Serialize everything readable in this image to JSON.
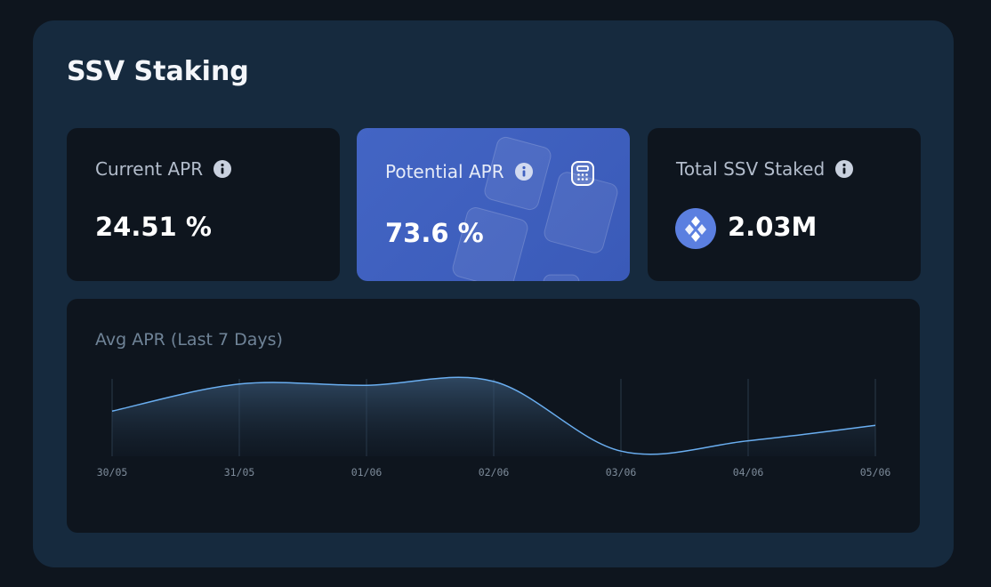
{
  "header": {
    "title": "SSV Staking"
  },
  "cards": [
    {
      "label": "Current APR",
      "value": "24.51 %"
    },
    {
      "label": "Potential APR",
      "value": "73.6 %"
    },
    {
      "label": "Total SSV Staked",
      "value": "2.03M"
    }
  ],
  "chart_data": {
    "type": "line",
    "title": "Avg APR (Last 7 Days)",
    "categories": [
      "30/05",
      "31/05",
      "01/06",
      "02/06",
      "03/06",
      "04/06",
      "05/06"
    ],
    "values": [
      23.5,
      25.6,
      25.5,
      25.8,
      20.4,
      21.2,
      22.4
    ],
    "color": "#6aaef0",
    "ylim": [
      20,
      26
    ]
  }
}
